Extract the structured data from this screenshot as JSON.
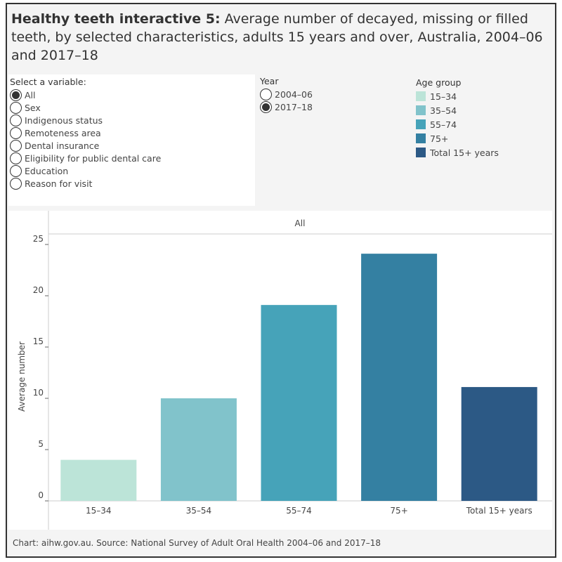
{
  "title": {
    "bold": "Healthy teeth interactive 5:",
    "rest": " Average number of decayed, missing or filled teeth, by selected characteristics, adults 15 years and over, Australia, 2004–06 and 2017–18"
  },
  "variable_filter": {
    "label": "Select a variable:",
    "selected": "All",
    "options": [
      "All",
      "Sex",
      "Indigenous status",
      "Remoteness area",
      "Dental insurance",
      "Eligibility for public dental care",
      "Education",
      "Reason for visit"
    ]
  },
  "year_filter": {
    "label": "Year",
    "selected": "2017–18",
    "options": [
      "2004–06",
      "2017–18"
    ]
  },
  "legend": {
    "title": "Age group",
    "items": [
      {
        "label": "15–34",
        "color": "#bce4d8"
      },
      {
        "label": "35–54",
        "color": "#81c3cb"
      },
      {
        "label": "55–74",
        "color": "#46a3b9"
      },
      {
        "label": "75+",
        "color": "#3480a2"
      },
      {
        "label": "Total 15+ years",
        "color": "#2c5985"
      }
    ]
  },
  "chart_data": {
    "type": "bar",
    "panel_header": "All",
    "categories": [
      "15–34",
      "35–54",
      "55–74",
      "75+",
      "Total 15+ years"
    ],
    "values": [
      4.0,
      10.0,
      19.1,
      24.1,
      11.1
    ],
    "colors": [
      "#bce4d8",
      "#81c3cb",
      "#46a3b9",
      "#3480a2",
      "#2c5985"
    ],
    "ylabel": "Average number",
    "xlabel": "",
    "ylim": [
      0,
      25
    ],
    "yticks": [
      0,
      5,
      10,
      15,
      20,
      25
    ],
    "grid": false
  },
  "footer": "Chart: aihw.gov.au. Source: National Survey of Adult Oral Health 2004–06 and 2017–18"
}
